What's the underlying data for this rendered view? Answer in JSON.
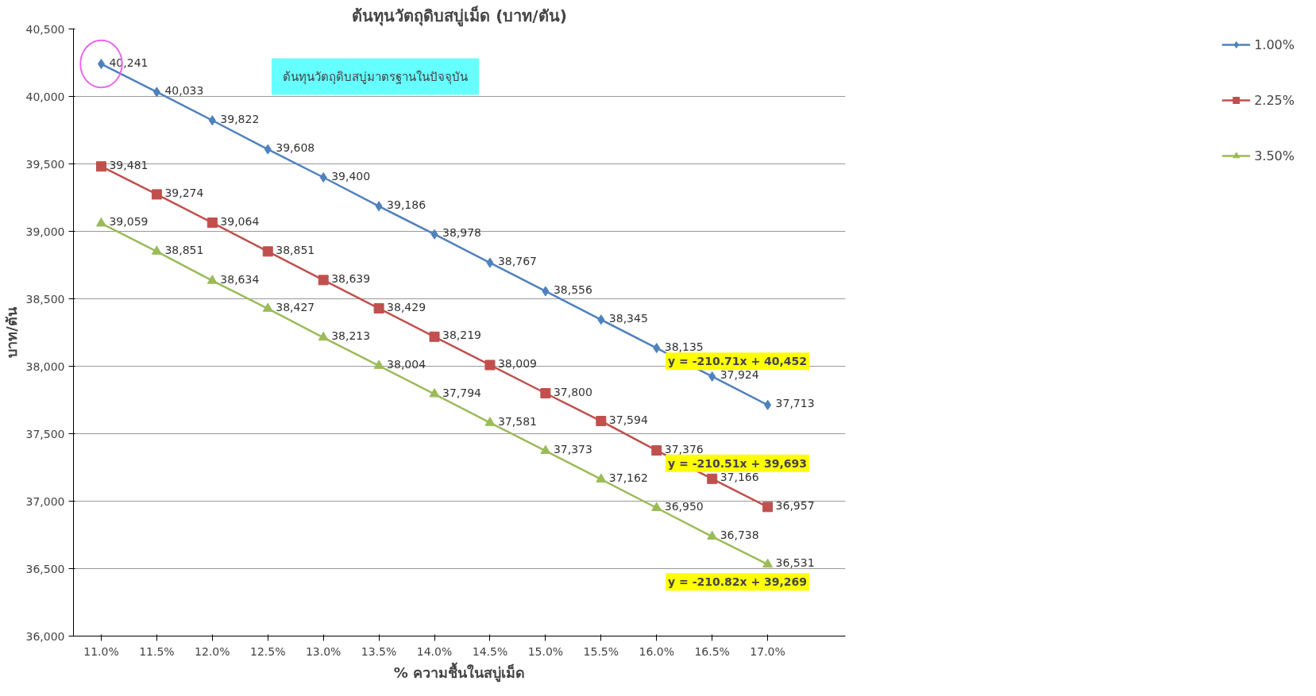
{
  "chart_data": {
    "type": "line",
    "title": "ต้นทุนวัตถุดิบสบู่เม็ด (บาท/ตัน)",
    "xlabel": "% ความชื้นในสบู่เม็ด",
    "ylabel": "บาท/ตัน",
    "categories": [
      "11.0%",
      "11.5%",
      "12.0%",
      "12.5%",
      "13.0%",
      "13.5%",
      "14.0%",
      "14.5%",
      "15.0%",
      "15.5%",
      "16.0%",
      "16.5%",
      "17.0%"
    ],
    "series": [
      {
        "name": "1.00%",
        "color": "#4f81bd",
        "marker": "diamond",
        "values": [
          40241,
          40033,
          39822,
          39608,
          39400,
          39186,
          38978,
          38767,
          38556,
          38345,
          38135,
          37924,
          37713
        ],
        "value_labels": [
          "40,241",
          "40,033",
          "39,822",
          "39,608",
          "39,400",
          "39,186",
          "38,978",
          "38,767",
          "38,556",
          "38,345",
          "38,135",
          "37,924",
          "37,713"
        ]
      },
      {
        "name": "2.25%",
        "color": "#c0504d",
        "marker": "square",
        "values": [
          39481,
          39274,
          39064,
          38851,
          38639,
          38429,
          38219,
          38009,
          37800,
          37594,
          37376,
          37166,
          36957
        ],
        "value_labels": [
          "39,481",
          "39,274",
          "39,064",
          "38,851",
          "38,639",
          "38,429",
          "38,219",
          "38,009",
          "37,800",
          "37,594",
          "37,376",
          "37,166",
          "36,957"
        ]
      },
      {
        "name": "3.50%",
        "color": "#9bbb59",
        "marker": "triangle",
        "values": [
          39059,
          38851,
          38634,
          38427,
          38213,
          38004,
          37794,
          37581,
          37373,
          37162,
          36950,
          36738,
          36531
        ],
        "value_labels": [
          "39,059",
          "38,851",
          "38,634",
          "38,427",
          "38,213",
          "38,004",
          "37,794",
          "37,581",
          "37,373",
          "37,162",
          "36,950",
          "36,738",
          "36,531"
        ]
      }
    ],
    "ylim": [
      36000,
      40500
    ],
    "yticks": [
      {
        "value": 36000,
        "label": "36,000"
      },
      {
        "value": 36500,
        "label": "36,500"
      },
      {
        "value": 37000,
        "label": "37,000"
      },
      {
        "value": 37500,
        "label": "37,500"
      },
      {
        "value": 38000,
        "label": "38,000"
      },
      {
        "value": 38500,
        "label": "38,500"
      },
      {
        "value": 39000,
        "label": "39,000"
      },
      {
        "value": 39500,
        "label": "39,500"
      },
      {
        "value": 40000,
        "label": "40,000"
      },
      {
        "value": 40500,
        "label": "40,500"
      }
    ],
    "annotations": [
      "ต้นทุนวัตถุดิบสบู่มาตรฐานในปัจจุบัน",
      "y = -210.71x + 40,452",
      "y = -210.51x + 39,693",
      "y = -210.82x + 39,269"
    ],
    "grid": "y",
    "legend": "right"
  }
}
